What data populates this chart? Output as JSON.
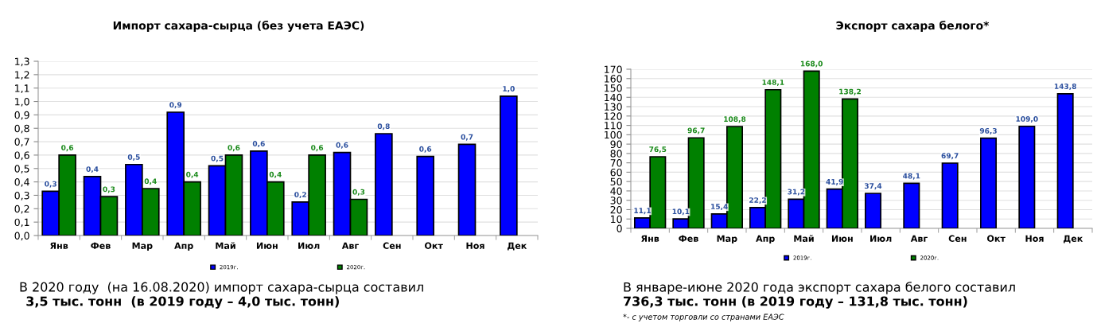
{
  "chart_data": [
    {
      "type": "bar",
      "title": "Импорт сахара-сырца (без учета ЕАЭС)",
      "categories": [
        "Янв",
        "Фев",
        "Мар",
        "Апр",
        "Май",
        "Июн",
        "Июл",
        "Авг",
        "Сен",
        "Окт",
        "Ноя",
        "Дек"
      ],
      "series": [
        {
          "name": "2019г.",
          "color": "#0000ff",
          "values": [
            0.33,
            0.44,
            0.53,
            0.92,
            0.52,
            0.63,
            0.25,
            0.62,
            0.76,
            0.59,
            0.68,
            1.04
          ],
          "value_labels": [
            "0,3",
            "0,4",
            "0,5",
            "0,9",
            "0,5",
            "0,6",
            "0,2",
            "0,6",
            "0,8",
            "0,6",
            "0,7",
            "1,0"
          ]
        },
        {
          "name": "2020г.",
          "color": "#008000",
          "values": [
            0.6,
            0.29,
            0.35,
            0.4,
            0.6,
            0.4,
            0.6,
            0.27,
            null,
            null,
            null,
            null
          ],
          "value_labels": [
            "0,6",
            "0,3",
            "0,4",
            "0,4",
            "0,6",
            "0,4",
            "0,6",
            "0,3",
            null,
            null,
            null,
            null
          ]
        }
      ],
      "ylim": [
        0,
        1.3
      ],
      "yticks": [
        {
          "value": 0,
          "label": "0,0"
        },
        {
          "value": 0.1,
          "label": "0,1"
        },
        {
          "value": 0.2,
          "label": "0,2"
        },
        {
          "value": 0.3,
          "label": "0,3"
        },
        {
          "value": 0.4,
          "label": "0,4"
        },
        {
          "value": 0.5,
          "label": "0,5"
        },
        {
          "value": 0.6,
          "label": "0,6"
        },
        {
          "value": 0.7,
          "label": "0,7"
        },
        {
          "value": 0.8,
          "label": "0,8"
        },
        {
          "value": 0.9,
          "label": "0,9"
        },
        {
          "value": 1.0,
          "label": "1,0"
        },
        {
          "value": 1.1,
          "label": "1,1"
        },
        {
          "value": 1.2,
          "label": "1,2"
        },
        {
          "value": 1.3,
          "label": "1,3"
        }
      ],
      "grid": "y",
      "legend": "bottom",
      "annotations": [
        "В 2020 году  (на 16.08.2020) импорт сахара-сырца составил",
        "3,5 тыс. тонн  (в 2019 году – 4,0 тыс. тонн)"
      ]
    },
    {
      "type": "bar",
      "title": "Экспорт сахара белого*",
      "categories": [
        "Янв",
        "Фев",
        "Мар",
        "Апр",
        "Май",
        "Июн",
        "Июл",
        "Авг",
        "Сен",
        "Окт",
        "Ноя",
        "Дек"
      ],
      "series": [
        {
          "name": "2019г.",
          "color": "#0000ff",
          "values": [
            11.1,
            10.1,
            15.4,
            22.2,
            31.2,
            41.9,
            37.4,
            48.1,
            69.7,
            96.3,
            109.0,
            143.8
          ],
          "value_labels": [
            "11,1",
            "10,1",
            "15,4",
            "22,2",
            "31,2",
            "41,9",
            "37,4",
            "48,1",
            "69,7",
            "96,3",
            "109,0",
            "143,8"
          ]
        },
        {
          "name": "2020г.",
          "color": "#008000",
          "values": [
            76.5,
            96.7,
            108.8,
            148.1,
            168.0,
            138.2,
            null,
            null,
            null,
            null,
            null,
            null
          ],
          "value_labels": [
            "76,5",
            "96,7",
            "108,8",
            "148,1",
            "168,0",
            "138,2",
            null,
            null,
            null,
            null,
            null,
            null
          ]
        }
      ],
      "ylim": [
        0,
        170
      ],
      "yticks": [
        0,
        10,
        20,
        30,
        40,
        50,
        60,
        70,
        80,
        90,
        100,
        110,
        120,
        130,
        140,
        150,
        160,
        170
      ],
      "grid": "y",
      "legend": "bottom",
      "annotations": [
        "В январе-июне 2020 года экспорт сахара белого составил",
        "736,3 тыс. тонн (в 2019 году – 131,8 тыс. тонн)",
        "*- с учетом торговли со странами ЕАЭС"
      ]
    }
  ]
}
